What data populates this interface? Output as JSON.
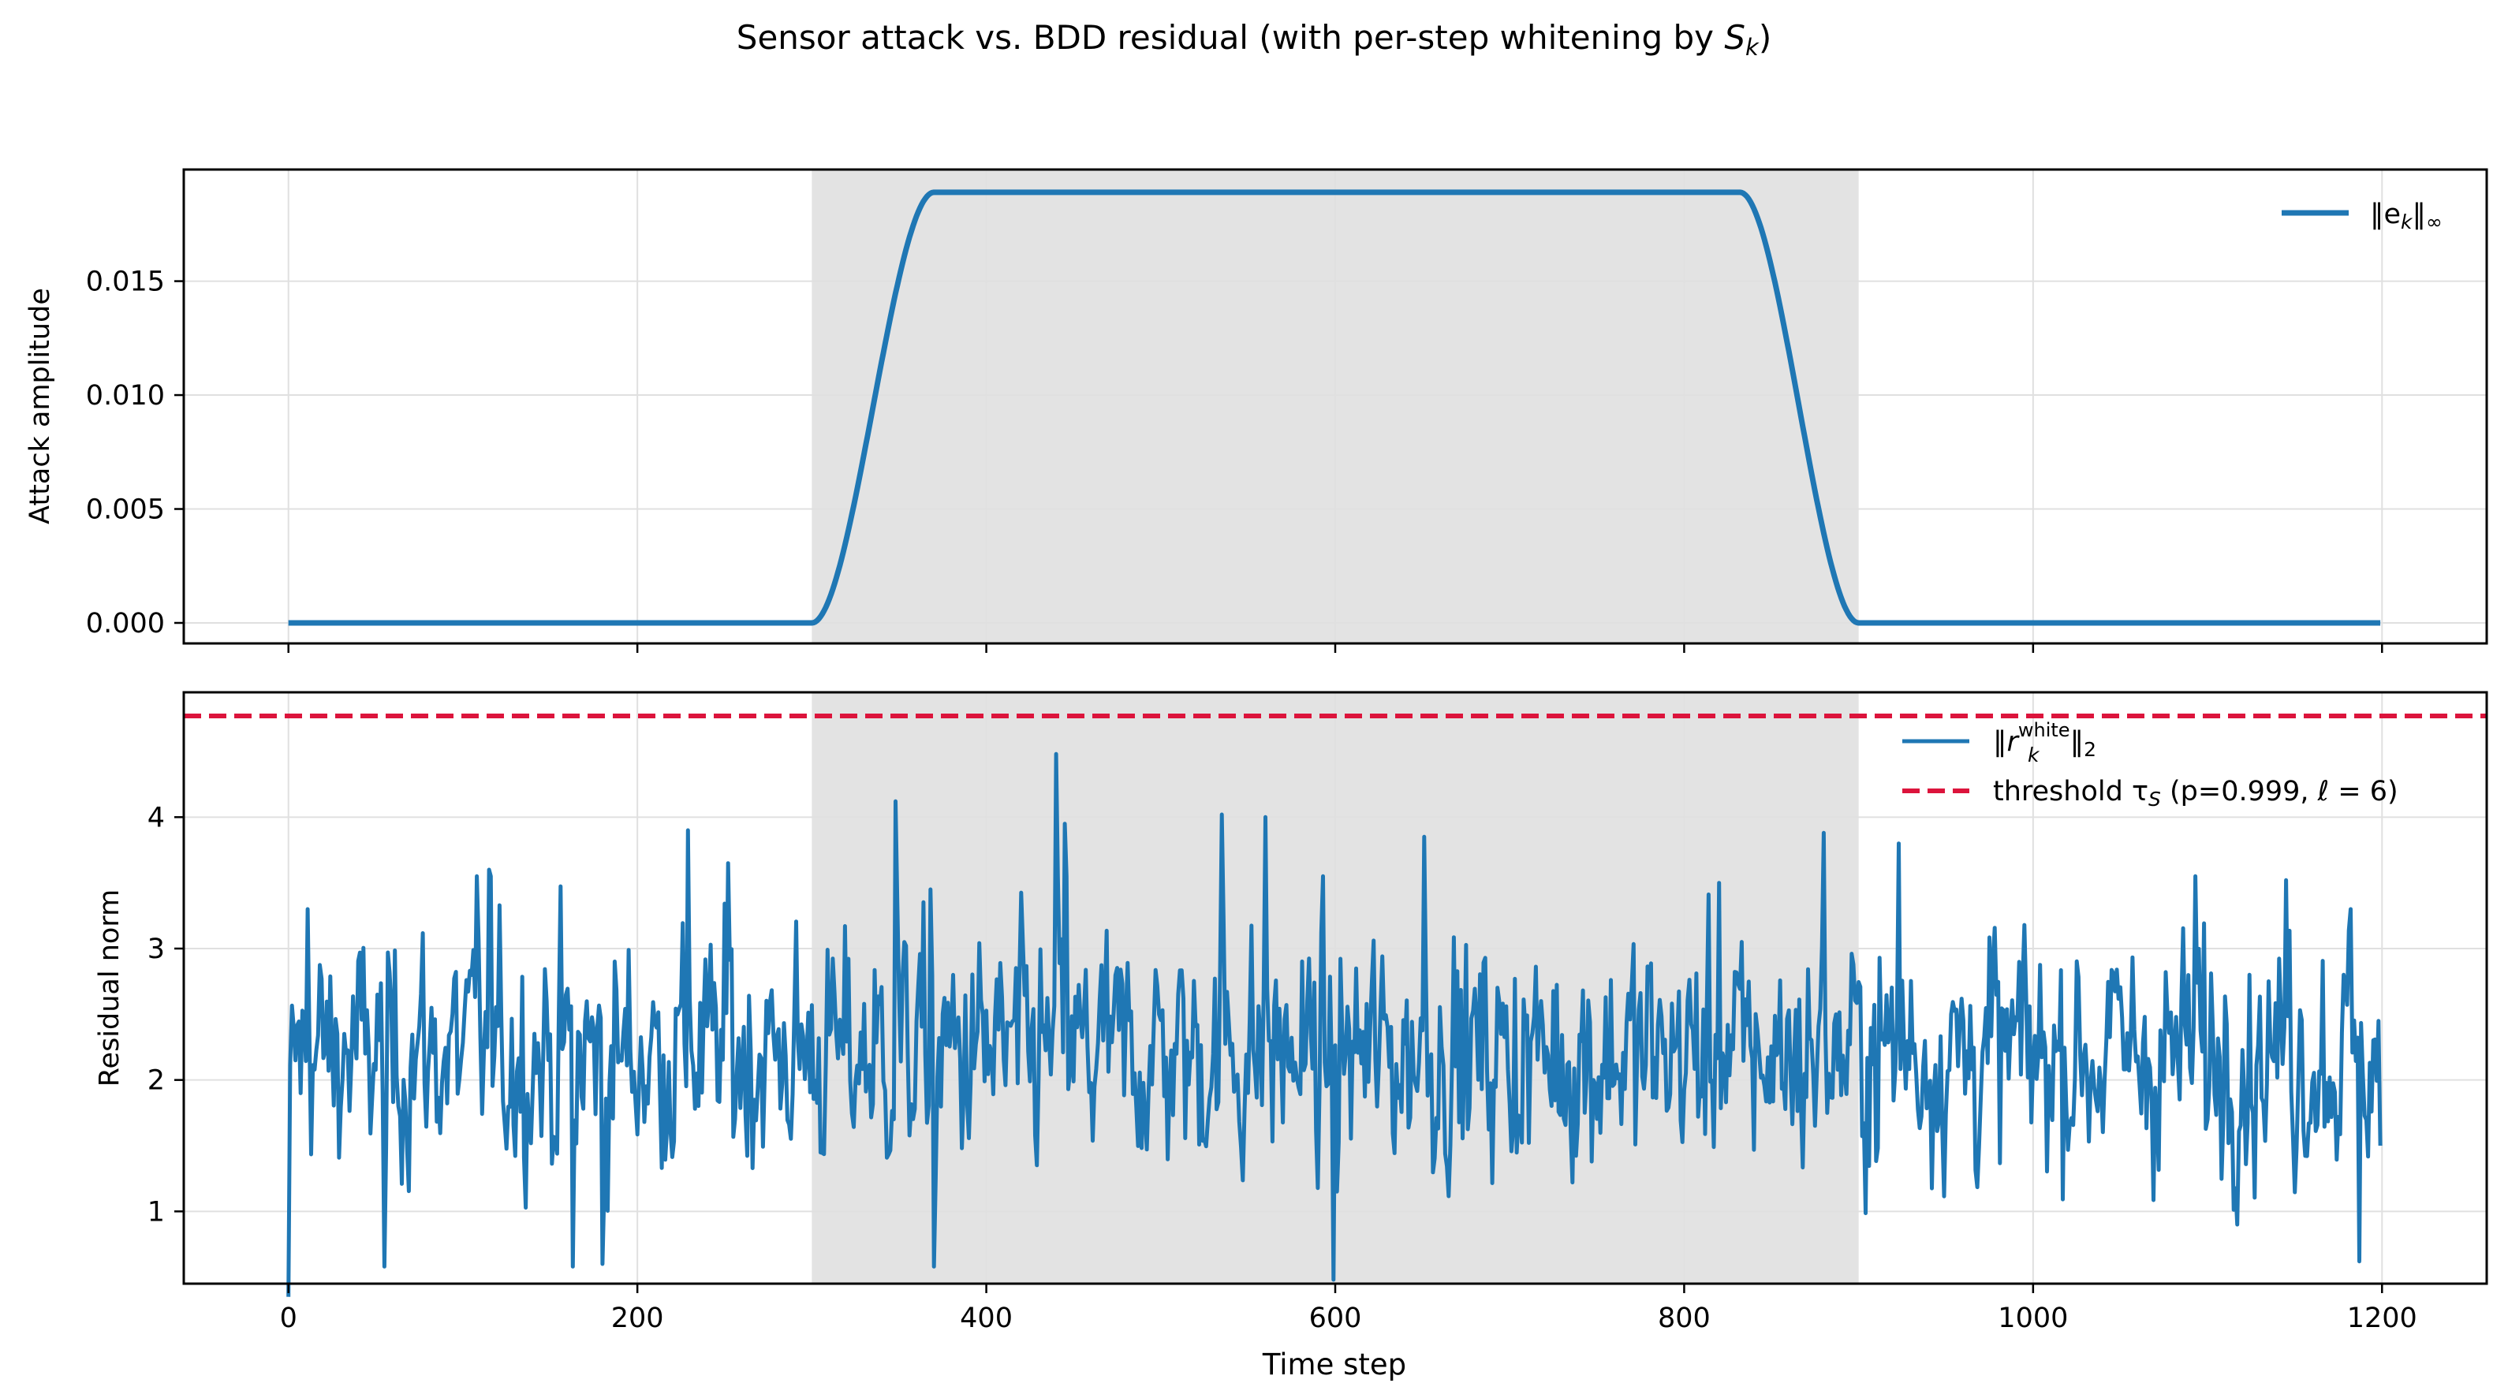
{
  "figure": {
    "title_prefix": "Sensor attack vs. BDD residual (with per-step whitening by ",
    "title_symbol": "S",
    "title_symbol_sub": "k",
    "title_suffix": ")"
  },
  "colors": {
    "series": "#1f77b4",
    "threshold": "#dc143c",
    "attack_window": "#e3e3e3",
    "grid": "#e0e0e0"
  },
  "chart_data": [
    {
      "type": "line",
      "panel": "top",
      "ylabel": "Attack amplitude",
      "xlim": [
        -60,
        1260
      ],
      "ylim": [
        -0.0009,
        0.0199
      ],
      "xticks": [
        0,
        200,
        400,
        600,
        800,
        1000,
        1200
      ],
      "yticks": [
        0.0,
        0.005,
        0.01,
        0.015
      ],
      "ytick_labels": [
        "0.000",
        "0.005",
        "0.010",
        "0.015"
      ],
      "grid": true,
      "shaded_x_range": [
        300,
        900
      ],
      "legend_position": "top-right",
      "series": [
        {
          "legend_main": "‖e",
          "legend_sub": "k",
          "legend_suffix": "‖",
          "legend_suffix_sub": "∞",
          "profile": {
            "baseline": 0.0,
            "plateau": 0.0189,
            "rise_start": 300,
            "rise_end": 370,
            "plateau_end": 832,
            "fall_end": 900,
            "x_end": 1199
          }
        }
      ]
    },
    {
      "type": "line",
      "panel": "bottom",
      "xlabel": "Time step",
      "ylabel": "Residual norm",
      "xlim": [
        -60,
        1260
      ],
      "ylim": [
        0.45,
        4.95
      ],
      "xticks": [
        0,
        200,
        400,
        600,
        800,
        1000,
        1200
      ],
      "xtick_labels": [
        "0",
        "200",
        "400",
        "600",
        "800",
        "1000",
        "1200"
      ],
      "yticks": [
        1,
        2,
        3,
        4
      ],
      "ytick_labels": [
        "1",
        "2",
        "3",
        "4"
      ],
      "grid": true,
      "shaded_x_range": [
        300,
        900
      ],
      "legend_position": "top-right",
      "threshold": 4.77,
      "series": [
        {
          "legend_main": "‖r",
          "legend_sub": "k",
          "legend_sup": "white",
          "legend_suffix": "‖",
          "legend_suffix_sub": "2",
          "x_start": 0,
          "x_end": 1199,
          "mean": 2.2,
          "min": 0.35,
          "max": 4.48,
          "notable_points": [
            {
              "x": 0,
              "y": 0.35
            },
            {
              "x": 3,
              "y": 2.4
            },
            {
              "x": 11,
              "y": 3.3
            },
            {
              "x": 55,
              "y": 0.58
            },
            {
              "x": 108,
              "y": 3.55
            },
            {
              "x": 115,
              "y": 3.6
            },
            {
              "x": 163,
              "y": 0.58
            },
            {
              "x": 180,
              "y": 0.6
            },
            {
              "x": 229,
              "y": 3.9
            },
            {
              "x": 252,
              "y": 3.65
            },
            {
              "x": 348,
              "y": 4.12
            },
            {
              "x": 368,
              "y": 3.45
            },
            {
              "x": 370,
              "y": 0.58
            },
            {
              "x": 440,
              "y": 4.48
            },
            {
              "x": 445,
              "y": 3.95
            },
            {
              "x": 535,
              "y": 4.02
            },
            {
              "x": 560,
              "y": 4.0
            },
            {
              "x": 599,
              "y": 0.48
            },
            {
              "x": 651,
              "y": 3.85
            },
            {
              "x": 820,
              "y": 3.5
            },
            {
              "x": 880,
              "y": 3.88
            },
            {
              "x": 923,
              "y": 3.8
            },
            {
              "x": 1093,
              "y": 3.55
            },
            {
              "x": 1145,
              "y": 3.52
            },
            {
              "x": 1182,
              "y": 3.3
            },
            {
              "x": 1187,
              "y": 0.62
            },
            {
              "x": 1199,
              "y": 1.5
            }
          ]
        },
        {
          "legend_text": "threshold τ",
          "legend_sub": "S",
          "legend_rest": " (p=0.999, ℓ = 6)",
          "style": "dashed",
          "value": 4.77
        }
      ]
    }
  ]
}
